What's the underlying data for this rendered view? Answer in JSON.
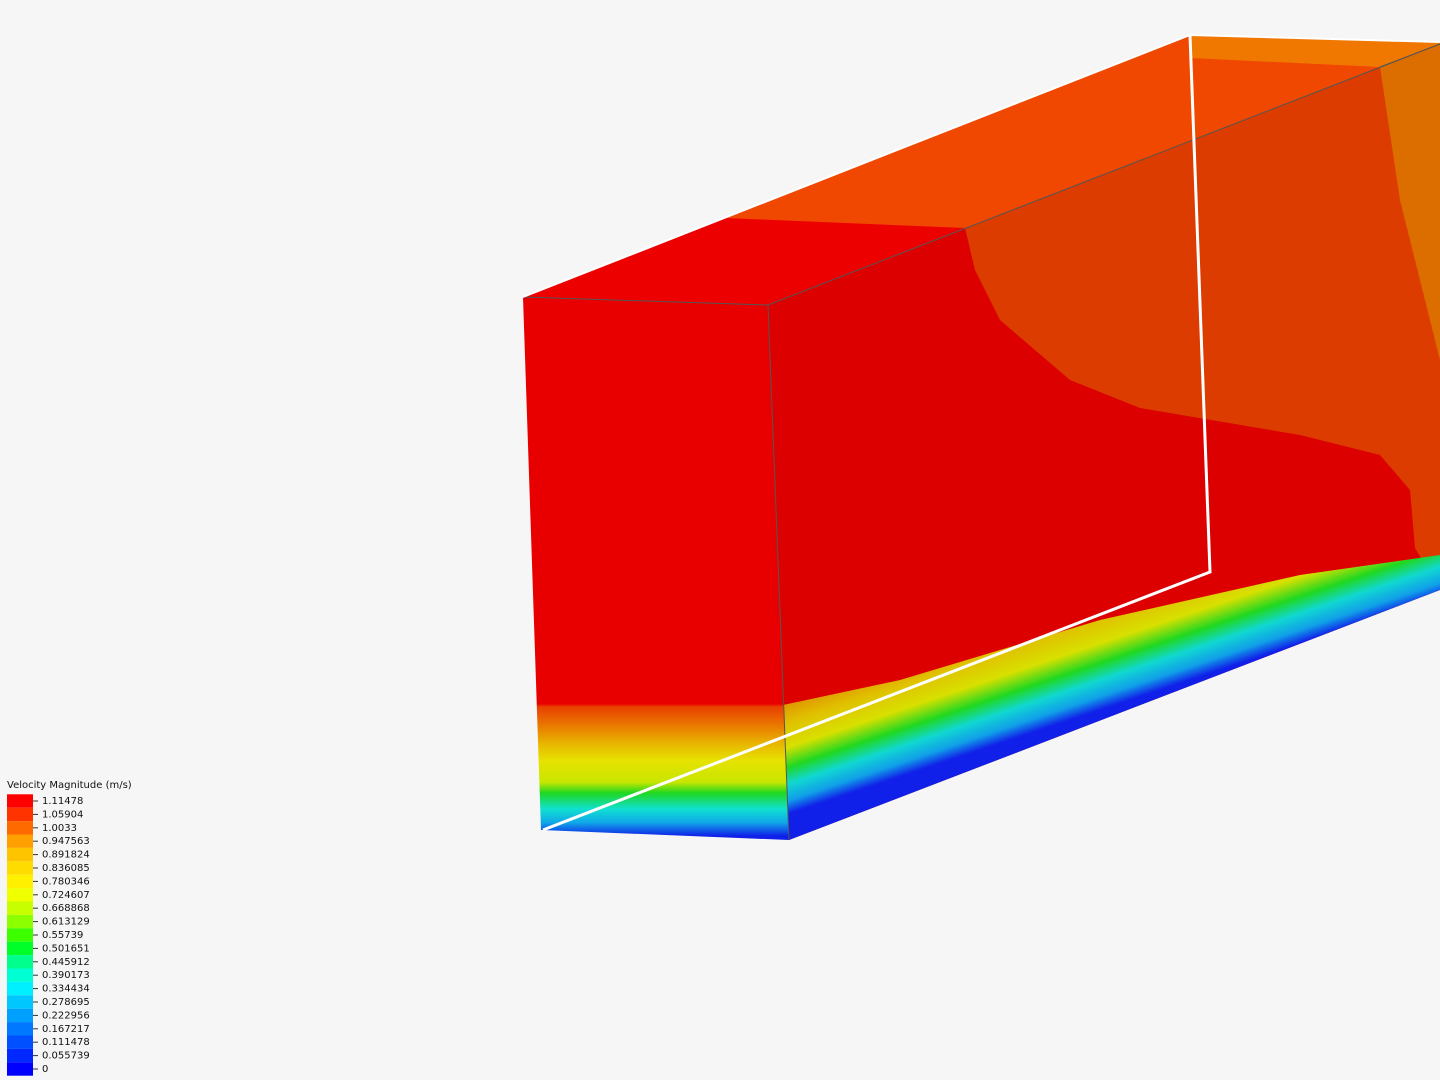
{
  "legend": {
    "title": "Velocity Magnitude (m/s)",
    "entries": [
      {
        "label": "1.11478",
        "color": "#ff0000"
      },
      {
        "label": "1.05904",
        "color": "#ff3300"
      },
      {
        "label": "1.0033",
        "color": "#ff6a00"
      },
      {
        "label": "0.947563",
        "color": "#ffa000"
      },
      {
        "label": "0.891824",
        "color": "#ffc400"
      },
      {
        "label": "0.836085",
        "color": "#ffdc00"
      },
      {
        "label": "0.780346",
        "color": "#fff000"
      },
      {
        "label": "0.724607",
        "color": "#f0ff00"
      },
      {
        "label": "0.668868",
        "color": "#c8ff00"
      },
      {
        "label": "0.613129",
        "color": "#8cff00"
      },
      {
        "label": "0.55739",
        "color": "#3cff00"
      },
      {
        "label": "0.501651",
        "color": "#00ff28"
      },
      {
        "label": "0.445912",
        "color": "#00ff8c"
      },
      {
        "label": "0.390173",
        "color": "#00ffd2"
      },
      {
        "label": "0.334434",
        "color": "#00f0ff"
      },
      {
        "label": "0.278695",
        "color": "#00c8ff"
      },
      {
        "label": "0.222956",
        "color": "#00a0ff"
      },
      {
        "label": "0.167217",
        "color": "#0078ff"
      },
      {
        "label": "0.111478",
        "color": "#0050ff"
      },
      {
        "label": "0.055739",
        "color": "#0028ff"
      },
      {
        "label": "0",
        "color": "#0000ff"
      }
    ]
  }
}
